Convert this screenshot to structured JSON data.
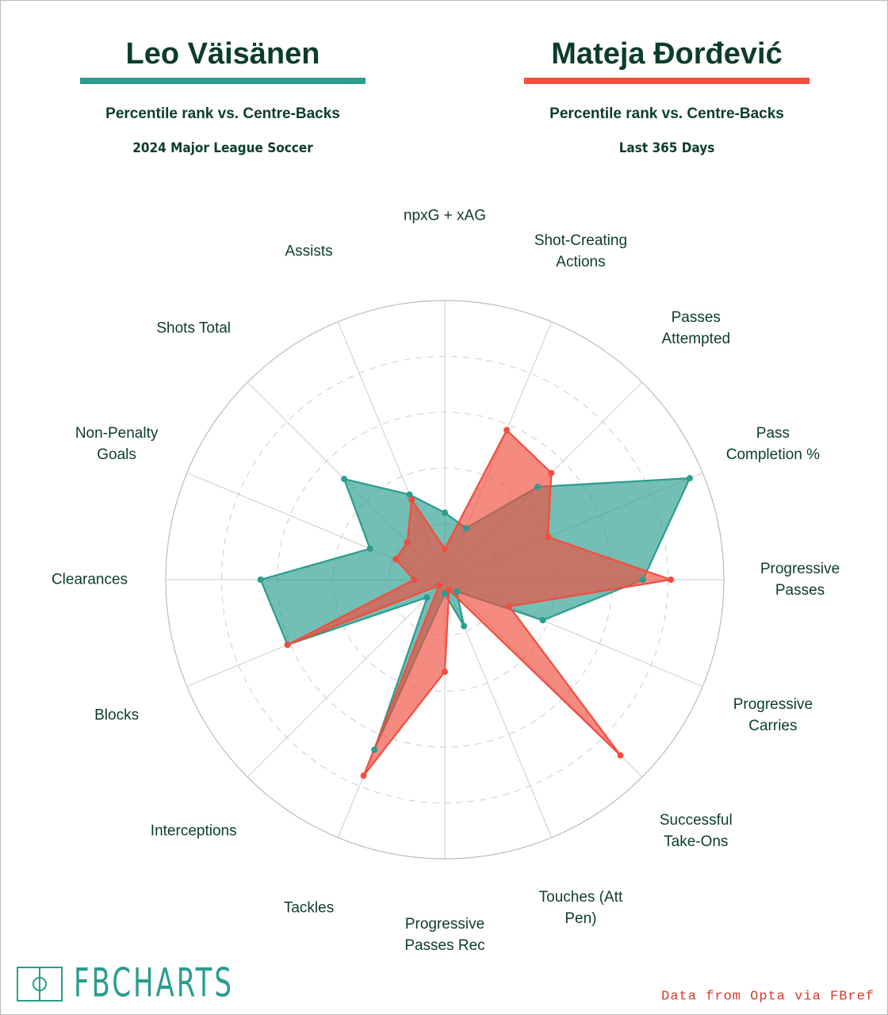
{
  "chart_data": {
    "type": "radar",
    "categories": [
      "npxG + xAG",
      "Shot-Creating Actions",
      "Passes Attempted",
      "Pass Completion %",
      "Progressive Passes",
      "Progressive Carries",
      "Successful Take-Ons",
      "Touches (Att Pen)",
      "Progressive Passes Rec",
      "Tackles",
      "Interceptions",
      "Blocks",
      "Clearances",
      "Non-Penalty Goals",
      "Shots Total",
      "Assists"
    ],
    "rlim": [
      0,
      100
    ],
    "rticks": [
      20,
      40,
      60,
      80,
      100
    ],
    "series": [
      {
        "name": "Leo Väisänen",
        "color": "#2a9d8f",
        "subtitle": "Percentile rank vs. Centre-Backs",
        "period": "2024 Major League Soccer",
        "values": [
          24,
          20,
          47,
          95,
          71,
          38,
          6,
          18,
          5,
          66,
          9,
          61,
          66,
          29,
          51,
          33
        ]
      },
      {
        "name": "Mateja Đorđević",
        "color": "#f04e3e",
        "subtitle": "Percentile rank vs. Centre-Backs",
        "period": "Last 365 Days",
        "values": [
          11,
          58,
          54,
          40,
          81,
          25,
          89,
          4,
          33,
          76,
          3,
          61,
          11,
          19,
          19,
          31
        ]
      }
    ],
    "source": "Data from Opta via FBref",
    "logo": "FBCHARTS"
  }
}
